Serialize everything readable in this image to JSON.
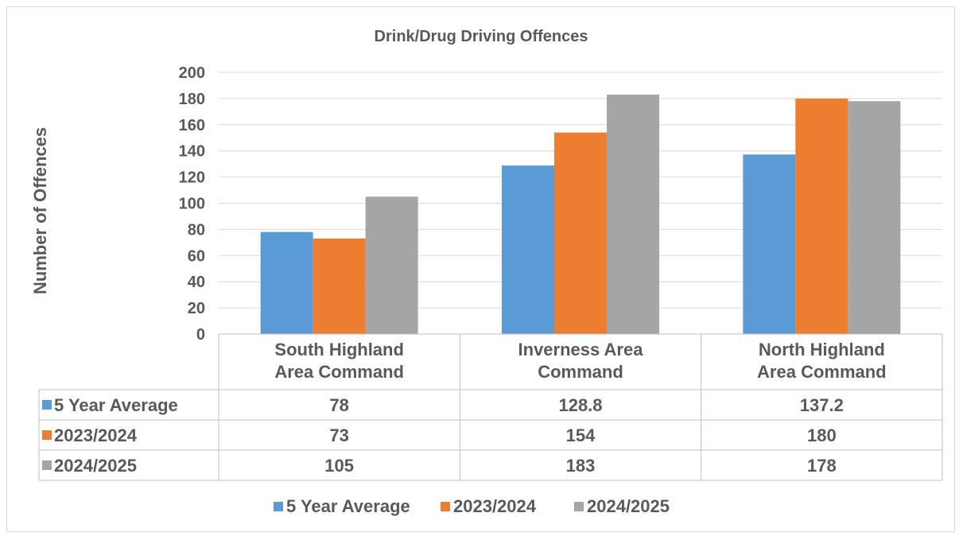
{
  "chart_data": {
    "type": "bar",
    "title": "Drink/Drug Driving Offences",
    "ylabel": "Number of Offences",
    "xlabel": "",
    "ylim": [
      0,
      200
    ],
    "yticks": [
      0,
      20,
      40,
      60,
      80,
      100,
      120,
      140,
      160,
      180,
      200
    ],
    "grid": true,
    "legend_position": "bottom",
    "categories": [
      [
        "South Highland",
        "Area Command"
      ],
      [
        "Inverness Area",
        "Command"
      ],
      [
        "North Highland",
        "Area Command"
      ]
    ],
    "series": [
      {
        "name": "5 Year Average",
        "color": "#5b9bd5",
        "values": [
          78,
          128.8,
          137.2
        ]
      },
      {
        "name": "2023/2024",
        "color": "#ed7d31",
        "values": [
          73,
          154,
          180
        ]
      },
      {
        "name": "2024/2025",
        "color": "#a5a5a5",
        "values": [
          105,
          183,
          178
        ]
      }
    ],
    "data_table": true
  }
}
